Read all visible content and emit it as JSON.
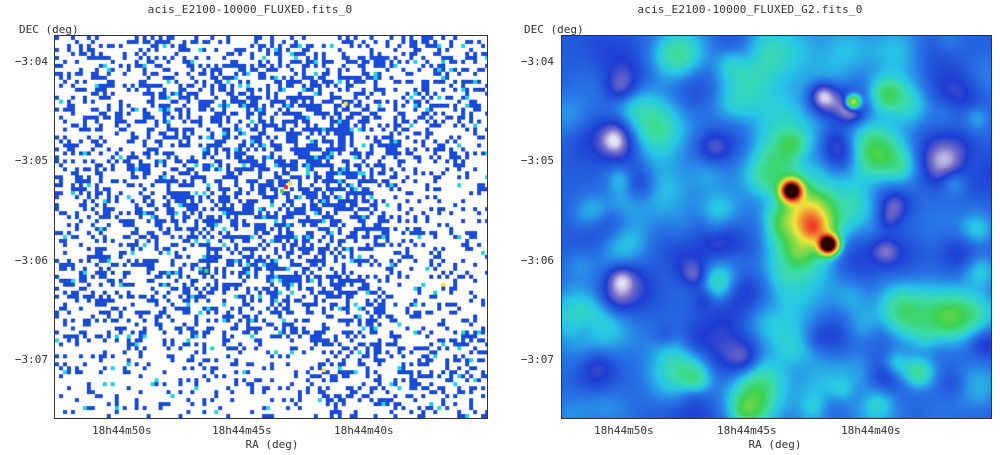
{
  "panels": [
    {
      "title": "acis_E2100-10000_FLUXED.fits_0",
      "ylabel": "DEC (deg)",
      "xlabel": "RA (deg)",
      "yticks": [
        "−3:04",
        "−3:05",
        "−3:06",
        "−3:07"
      ],
      "xticks": [
        "18h44m50s",
        "18h44m45s",
        "18h44m40s"
      ],
      "image_style": "sparse-binned"
    },
    {
      "title": "acis_E2100-10000_FLUXED_G2.fits_0",
      "ylabel": "DEC (deg)",
      "xlabel": "RA (deg)",
      "yticks": [
        "−3:04",
        "−3:05",
        "−3:06",
        "−3:07"
      ],
      "xticks": [
        "18h44m50s",
        "18h44m45s",
        "18h44m40s"
      ],
      "image_style": "gaussian-smoothed"
    }
  ],
  "colors": {
    "pixel_blue": "#1a4bd6",
    "pixel_cyan": "#22d4e0",
    "pixel_green": "#3ad05a",
    "background_blue": "#2a55d8",
    "source_red": "#e8202a",
    "source_yellow": "#f0e040"
  }
}
